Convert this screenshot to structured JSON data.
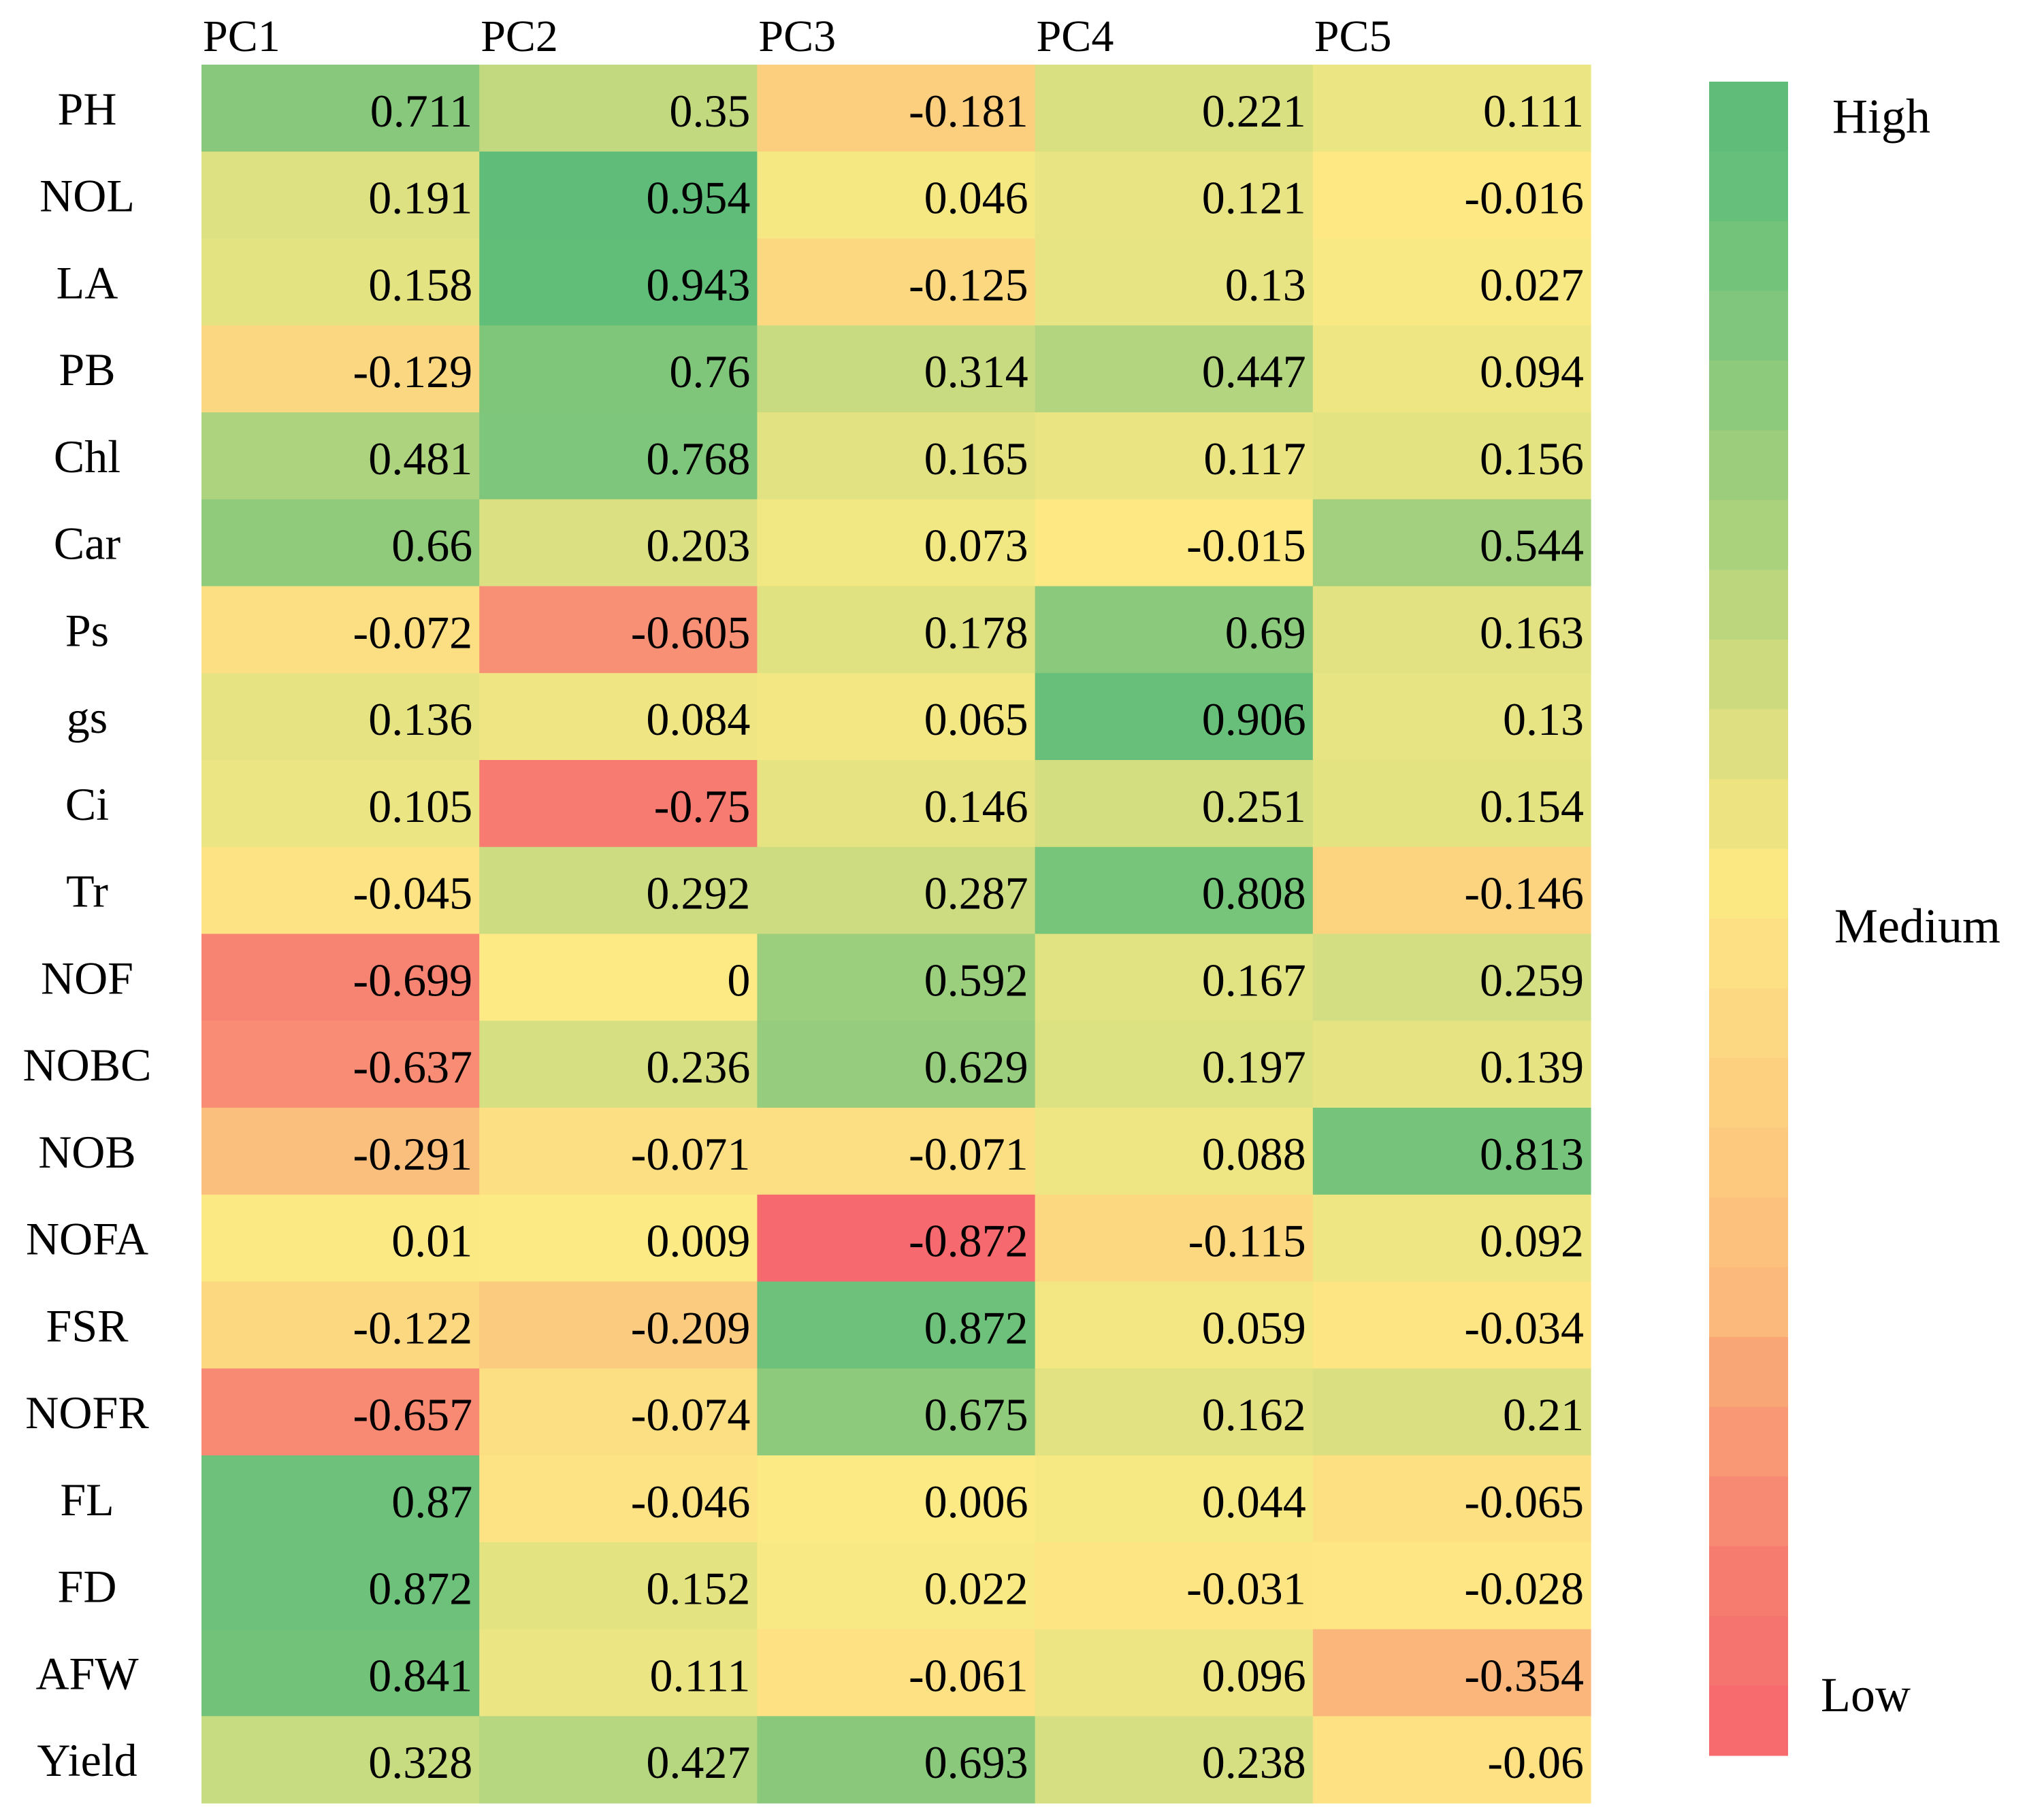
{
  "chart_data": {
    "type": "heatmap",
    "columns": [
      "PC1",
      "PC2",
      "PC3",
      "PC4",
      "PC5"
    ],
    "rows": [
      "PH",
      "NOL",
      "LA",
      "PB",
      "Chl",
      "Car",
      "Ps",
      "gs",
      "Ci",
      "Tr",
      "NOF",
      "NOBC",
      "NOB",
      "NOFA",
      "FSR",
      "NOFR",
      "FL",
      "FD",
      "AFW",
      "Yield"
    ],
    "values": [
      [
        0.711,
        0.35,
        -0.181,
        0.221,
        0.111
      ],
      [
        0.191,
        0.954,
        0.046,
        0.121,
        -0.016
      ],
      [
        0.158,
        0.943,
        -0.125,
        0.13,
        0.027
      ],
      [
        -0.129,
        0.76,
        0.314,
        0.447,
        0.094
      ],
      [
        0.481,
        0.768,
        0.165,
        0.117,
        0.156
      ],
      [
        0.66,
        0.203,
        0.073,
        -0.015,
        0.544
      ],
      [
        -0.072,
        -0.605,
        0.178,
        0.69,
        0.163
      ],
      [
        0.136,
        0.084,
        0.065,
        0.906,
        0.13
      ],
      [
        0.105,
        -0.75,
        0.146,
        0.251,
        0.154
      ],
      [
        -0.045,
        0.292,
        0.287,
        0.808,
        -0.146
      ],
      [
        -0.699,
        0,
        0.592,
        0.167,
        0.259
      ],
      [
        -0.637,
        0.236,
        0.629,
        0.197,
        0.139
      ],
      [
        -0.291,
        -0.071,
        -0.071,
        0.088,
        0.813
      ],
      [
        0.01,
        0.009,
        -0.872,
        -0.115,
        0.092
      ],
      [
        -0.122,
        -0.209,
        0.872,
        0.059,
        -0.034
      ],
      [
        -0.657,
        -0.074,
        0.675,
        0.162,
        0.21
      ],
      [
        0.87,
        -0.046,
        0.006,
        0.044,
        -0.065
      ],
      [
        0.872,
        0.152,
        0.022,
        -0.031,
        -0.028
      ],
      [
        0.841,
        0.111,
        -0.061,
        0.096,
        -0.354
      ],
      [
        0.328,
        0.427,
        0.693,
        0.238,
        -0.06
      ]
    ],
    "value_range": [
      -0.872,
      0.954
    ],
    "colorbar": {
      "labels": {
        "high": "High",
        "medium": "Medium",
        "low": "Low"
      },
      "colors": [
        "#5fbd79",
        "#66bf7a",
        "#74c37b",
        "#80c67c",
        "#8dca7c",
        "#9ccd7c",
        "#aad17c",
        "#bbd67d",
        "#cdda7e",
        "#dedf80",
        "#ede481",
        "#fbe883",
        "#fde083",
        "#fdd882",
        "#fdd07f",
        "#fcc97e",
        "#fcc17c",
        "#fbb97b",
        "#f9a676",
        "#f89874",
        "#f78a72",
        "#f67c70",
        "#f6746f",
        "#f76a6e"
      ]
    },
    "title": "",
    "xlabel": "",
    "ylabel": ""
  }
}
